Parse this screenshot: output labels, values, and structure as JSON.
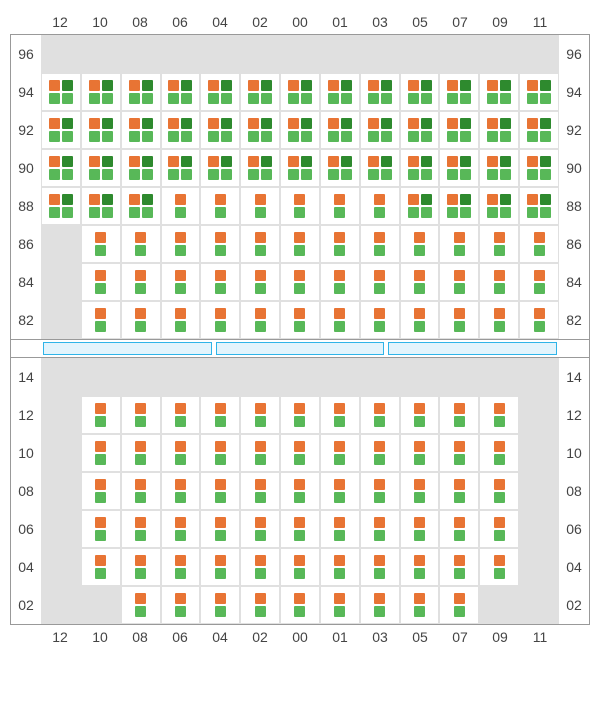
{
  "layout": {
    "columns": [
      "12",
      "10",
      "08",
      "06",
      "04",
      "02",
      "00",
      "01",
      "03",
      "05",
      "07",
      "09",
      "11"
    ],
    "panels": [
      {
        "rows": [
          "96",
          "94",
          "92",
          "90",
          "88",
          "86",
          "84",
          "82"
        ],
        "cells": {
          "96": [
            null,
            null,
            null,
            null,
            null,
            null,
            null,
            null,
            null,
            null,
            null,
            null,
            null
          ],
          "94": [
            "A",
            "A",
            "A",
            "A",
            "A",
            "A",
            "A",
            "A",
            "A",
            "A",
            "A",
            "A",
            "A"
          ],
          "92": [
            "A",
            "A",
            "A",
            "A",
            "A",
            "A",
            "A",
            "A",
            "A",
            "A",
            "A",
            "A",
            "A"
          ],
          "90": [
            "A",
            "A",
            "A",
            "A",
            "A",
            "A",
            "A",
            "A",
            "A",
            "A",
            "A",
            "A",
            "A"
          ],
          "88": [
            "A",
            "A",
            "A",
            "B",
            "B",
            "B",
            "B",
            "B",
            "B",
            "A",
            "A",
            "A",
            "A"
          ],
          "86": [
            null,
            "B",
            "B",
            "B",
            "B",
            "B",
            "B",
            "B",
            "B",
            "B",
            "B",
            "B",
            "B"
          ],
          "84": [
            null,
            "B",
            "B",
            "B",
            "B",
            "B",
            "B",
            "B",
            "B",
            "B",
            "B",
            "B",
            "B"
          ],
          "82": [
            null,
            "B",
            "B",
            "B",
            "B",
            "B",
            "B",
            "B",
            "B",
            "B",
            "B",
            "B",
            "B"
          ]
        }
      },
      {
        "rows": [
          "14",
          "12",
          "10",
          "08",
          "06",
          "04",
          "02"
        ],
        "cells": {
          "14": [
            null,
            null,
            null,
            null,
            null,
            null,
            null,
            null,
            null,
            null,
            null,
            null,
            null
          ],
          "12": [
            null,
            "B",
            "B",
            "B",
            "B",
            "B",
            "B",
            "B",
            "B",
            "B",
            "B",
            "B",
            null
          ],
          "10": [
            null,
            "B",
            "B",
            "B",
            "B",
            "B",
            "B",
            "B",
            "B",
            "B",
            "B",
            "B",
            null
          ],
          "08": [
            null,
            "B",
            "B",
            "B",
            "B",
            "B",
            "B",
            "B",
            "B",
            "B",
            "B",
            "B",
            null
          ],
          "06": [
            null,
            "B",
            "B",
            "B",
            "B",
            "B",
            "B",
            "B",
            "B",
            "B",
            "B",
            "B",
            null
          ],
          "04": [
            null,
            "B",
            "B",
            "B",
            "B",
            "B",
            "B",
            "B",
            "B",
            "B",
            "B",
            "B",
            null
          ],
          "02": [
            null,
            null,
            "B",
            "B",
            "B",
            "B",
            "B",
            "B",
            "B",
            "B",
            "B",
            null,
            null
          ]
        }
      }
    ],
    "middle_segments": 3
  },
  "cell_types": {
    "A": {
      "top": [
        "#e87434",
        "#2e8a2e"
      ],
      "bottom": [
        "#58b858",
        "#58b858"
      ]
    },
    "B": {
      "top": [
        "#e87434"
      ],
      "bottom": [
        "#58b858"
      ]
    }
  },
  "style": {
    "occupied_bg": "#ffffff",
    "empty_bg": "#e0e0e0",
    "grid_border": "#e0e0e0",
    "panel_border": "#999999",
    "label_color": "#444444",
    "label_fontsize": 14,
    "mid_fill": "#e3f4fc",
    "mid_border": "#2fb4e8"
  }
}
